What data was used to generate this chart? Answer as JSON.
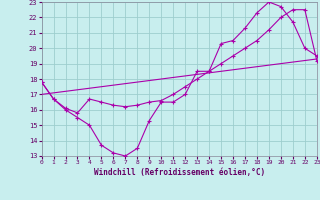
{
  "bg_color": "#c8eeee",
  "grid_color": "#9ecece",
  "line_color": "#aa00aa",
  "xlim": [
    0,
    23
  ],
  "ylim": [
    13,
    23
  ],
  "yticks": [
    13,
    14,
    15,
    16,
    17,
    18,
    19,
    20,
    21,
    22,
    23
  ],
  "xticks": [
    0,
    1,
    2,
    3,
    4,
    5,
    6,
    7,
    8,
    9,
    10,
    11,
    12,
    13,
    14,
    15,
    16,
    17,
    18,
    19,
    20,
    21,
    22,
    23
  ],
  "xlabel": "Windchill (Refroidissement éolien,°C)",
  "line1_x": [
    0,
    1,
    2,
    3,
    4,
    5,
    6,
    7,
    8,
    9,
    10,
    11,
    12,
    13,
    14,
    15,
    16,
    17,
    18,
    19,
    20,
    21,
    22,
    23
  ],
  "line1_y": [
    17.8,
    16.7,
    16.0,
    15.5,
    15.0,
    13.7,
    13.2,
    13.0,
    13.5,
    15.3,
    16.5,
    16.5,
    17.0,
    18.5,
    18.5,
    20.3,
    20.5,
    21.3,
    22.3,
    23.0,
    22.7,
    21.7,
    20.0,
    19.5
  ],
  "line2_x": [
    0,
    1,
    2,
    3,
    4,
    5,
    6,
    7,
    8,
    9,
    10,
    11,
    12,
    13,
    14,
    15,
    16,
    17,
    18,
    19,
    20,
    21,
    22,
    23
  ],
  "line2_y": [
    17.8,
    16.7,
    16.1,
    15.8,
    16.7,
    16.5,
    16.3,
    16.2,
    16.3,
    16.5,
    16.6,
    17.0,
    17.5,
    18.0,
    18.5,
    19.0,
    19.5,
    20.0,
    20.5,
    21.2,
    22.0,
    22.5,
    22.5,
    19.2
  ],
  "line3_x": [
    0,
    23
  ],
  "line3_y": [
    17.0,
    19.3
  ]
}
